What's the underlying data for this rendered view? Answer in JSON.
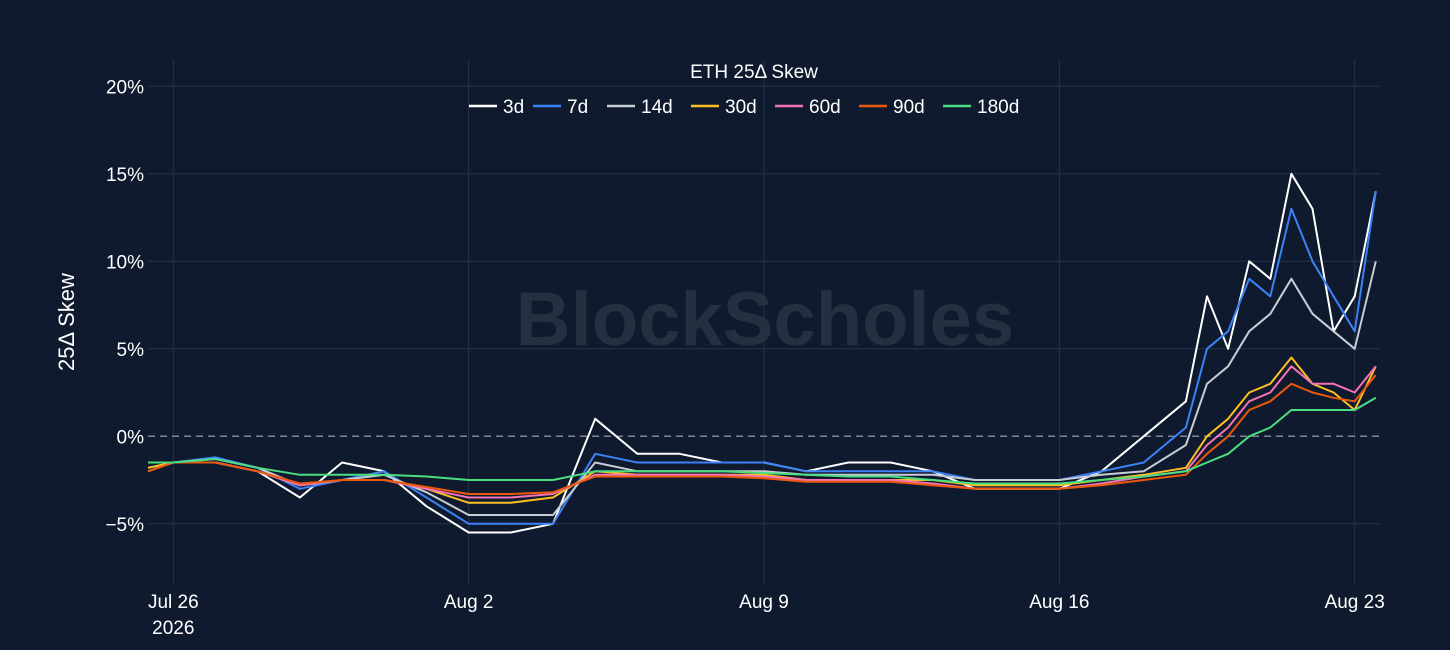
{
  "watermark": "BlockScholes",
  "chart_data": {
    "type": "line",
    "title": "ETH 25Δ Skew",
    "ylabel": "25Δ Skew",
    "xlabel": "",
    "ylim": [
      -8.5,
      21.5
    ],
    "yticks": [
      {
        "value": 20,
        "label": "20%"
      },
      {
        "value": 15,
        "label": "15%"
      },
      {
        "value": 10,
        "label": "10%"
      },
      {
        "value": 5,
        "label": "5%"
      },
      {
        "value": 0,
        "label": "0%"
      },
      {
        "value": -5,
        "label": "−5%"
      }
    ],
    "x_range_days": [
      -0.6,
      28.6
    ],
    "xticks": [
      {
        "day": 0,
        "label": "Jul 26",
        "sub": "2026"
      },
      {
        "day": 7,
        "label": "Aug 2",
        "sub": ""
      },
      {
        "day": 14,
        "label": "Aug 9",
        "sub": ""
      },
      {
        "day": 21,
        "label": "Aug 16",
        "sub": ""
      },
      {
        "day": 28,
        "label": "Aug 23",
        "sub": ""
      }
    ],
    "zero_line": true,
    "legend_position": "top-center",
    "series": [
      {
        "name": "3d",
        "color": "#ffffff",
        "x": [
          -1,
          0,
          1,
          2,
          3,
          4,
          5,
          6,
          7,
          8,
          9,
          10,
          11,
          12,
          13,
          14,
          15,
          16,
          17,
          18,
          19,
          20,
          21,
          22,
          23,
          24,
          24.5,
          25,
          25.5,
          26,
          26.5,
          27,
          27.5,
          28,
          28.5
        ],
        "values": [
          -1.5,
          -1.5,
          -1.5,
          -2,
          -3.5,
          -1.5,
          -2,
          -4,
          -5.5,
          -5.5,
          -5,
          1,
          -1,
          -1,
          -1.5,
          -1.5,
          -2,
          -1.5,
          -1.5,
          -2,
          -3,
          -3,
          -3,
          -2,
          0,
          2,
          8,
          5,
          10,
          9,
          15,
          13,
          6,
          8,
          14
        ]
      },
      {
        "name": "7d",
        "color": "#3b82f6",
        "x": [
          -1,
          0,
          1,
          2,
          3,
          4,
          5,
          6,
          7,
          8,
          9,
          10,
          11,
          12,
          13,
          14,
          15,
          16,
          17,
          18,
          19,
          20,
          21,
          22,
          23,
          24,
          24.5,
          25,
          25.5,
          26,
          26.5,
          27,
          27.5,
          28,
          28.5
        ],
        "values": [
          -1.5,
          -1.5,
          -1.2,
          -1.8,
          -3,
          -2.5,
          -2,
          -3.5,
          -5,
          -5,
          -5,
          -1,
          -1.5,
          -1.5,
          -1.5,
          -1.5,
          -2,
          -2,
          -2,
          -2,
          -2.5,
          -2.5,
          -2.5,
          -2,
          -1.5,
          0.5,
          5,
          6,
          9,
          8,
          13,
          10,
          8,
          6,
          14
        ]
      },
      {
        "name": "14d",
        "color": "#c8ccd4",
        "x": [
          -1,
          0,
          1,
          2,
          3,
          4,
          5,
          6,
          7,
          8,
          9,
          10,
          11,
          12,
          13,
          14,
          15,
          16,
          17,
          18,
          19,
          20,
          21,
          22,
          23,
          24,
          24.5,
          25,
          25.5,
          26,
          26.5,
          27,
          27.5,
          28,
          28.5
        ],
        "values": [
          -1.8,
          -1.5,
          -1.3,
          -1.8,
          -2.8,
          -2.5,
          -2.2,
          -3.2,
          -4.5,
          -4.5,
          -4.5,
          -1.5,
          -2,
          -2,
          -2,
          -2,
          -2.2,
          -2.2,
          -2.2,
          -2.2,
          -2.5,
          -2.5,
          -2.5,
          -2.2,
          -2,
          -0.5,
          3,
          4,
          6,
          7,
          9,
          7,
          6,
          5,
          10
        ]
      },
      {
        "name": "30d",
        "color": "#fbbf24",
        "x": [
          -1,
          0,
          1,
          2,
          3,
          4,
          5,
          6,
          7,
          8,
          9,
          10,
          11,
          12,
          13,
          14,
          15,
          16,
          17,
          18,
          19,
          20,
          21,
          22,
          23,
          24,
          24.5,
          25,
          25.5,
          26,
          26.5,
          27,
          27.5,
          28,
          28.5
        ],
        "values": [
          -1.8,
          -1.5,
          -1.5,
          -2,
          -2.8,
          -2.5,
          -2.5,
          -3,
          -3.8,
          -3.8,
          -3.5,
          -2,
          -2.2,
          -2.2,
          -2.2,
          -2.2,
          -2.5,
          -2.5,
          -2.5,
          -2.5,
          -2.8,
          -2.8,
          -2.8,
          -2.5,
          -2.2,
          -1.8,
          0,
          1,
          2.5,
          3,
          4.5,
          3,
          2.5,
          1.5,
          4
        ]
      },
      {
        "name": "60d",
        "color": "#f472b6",
        "x": [
          -1,
          0,
          1,
          2,
          3,
          4,
          5,
          6,
          7,
          8,
          9,
          10,
          11,
          12,
          13,
          14,
          15,
          16,
          17,
          18,
          19,
          20,
          21,
          22,
          23,
          24,
          24.5,
          25,
          25.5,
          26,
          26.5,
          27,
          27.5,
          28,
          28.5
        ],
        "values": [
          -2,
          -1.5,
          -1.5,
          -2,
          -2.8,
          -2.5,
          -2.5,
          -3,
          -3.5,
          -3.5,
          -3.3,
          -2.2,
          -2.2,
          -2.2,
          -2.2,
          -2.3,
          -2.5,
          -2.5,
          -2.5,
          -2.7,
          -3,
          -3,
          -3,
          -2.7,
          -2.3,
          -2,
          -0.5,
          0.5,
          2,
          2.5,
          4,
          3,
          3,
          2.5,
          4
        ]
      },
      {
        "name": "90d",
        "color": "#ea580c",
        "x": [
          -1,
          0,
          1,
          2,
          3,
          4,
          5,
          6,
          7,
          8,
          9,
          10,
          11,
          12,
          13,
          14,
          15,
          16,
          17,
          18,
          19,
          20,
          21,
          22,
          23,
          24,
          24.5,
          25,
          25.5,
          26,
          26.5,
          27,
          27.5,
          28,
          28.5
        ],
        "values": [
          -2,
          -1.5,
          -1.5,
          -2,
          -2.7,
          -2.5,
          -2.5,
          -2.9,
          -3.3,
          -3.3,
          -3.2,
          -2.3,
          -2.3,
          -2.3,
          -2.3,
          -2.4,
          -2.6,
          -2.6,
          -2.6,
          -2.8,
          -3,
          -3,
          -3,
          -2.8,
          -2.5,
          -2.2,
          -1,
          0,
          1.5,
          2,
          3,
          2.5,
          2.2,
          2,
          3.5
        ]
      },
      {
        "name": "180d",
        "color": "#4ade80",
        "x": [
          -1,
          0,
          1,
          2,
          3,
          4,
          5,
          6,
          7,
          8,
          9,
          10,
          11,
          12,
          13,
          14,
          15,
          16,
          17,
          18,
          19,
          20,
          21,
          22,
          23,
          24,
          24.5,
          25,
          25.5,
          26,
          26.5,
          27,
          27.5,
          28,
          28.5
        ],
        "values": [
          -1.5,
          -1.5,
          -1.3,
          -1.8,
          -2.2,
          -2.2,
          -2.2,
          -2.3,
          -2.5,
          -2.5,
          -2.5,
          -2,
          -2,
          -2,
          -2,
          -2.1,
          -2.2,
          -2.3,
          -2.3,
          -2.5,
          -2.7,
          -2.7,
          -2.7,
          -2.5,
          -2.3,
          -2,
          -1.5,
          -1,
          0,
          0.5,
          1.5,
          1.5,
          1.5,
          1.5,
          2.2
        ]
      }
    ]
  }
}
